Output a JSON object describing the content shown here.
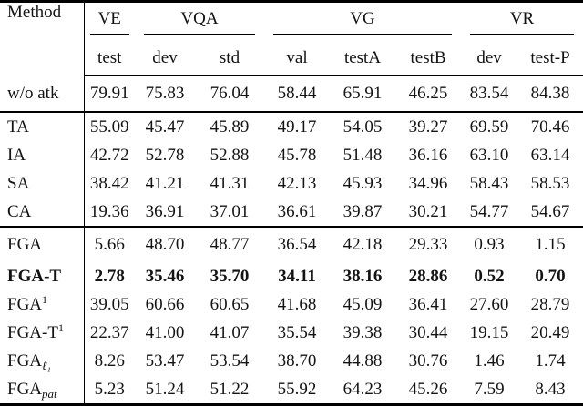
{
  "table": {
    "method_header": "Method",
    "groups": [
      {
        "label": "VE"
      },
      {
        "label": "VQA"
      },
      {
        "label": "VG"
      },
      {
        "label": "VR"
      }
    ],
    "subheaders": [
      "test",
      "dev",
      "std",
      "val",
      "testA",
      "testB",
      "dev",
      "test-P"
    ],
    "rows": [
      {
        "method": {
          "base": "w/o atk"
        },
        "values": [
          "79.91",
          "75.83",
          "76.04",
          "58.44",
          "65.91",
          "46.25",
          "83.54",
          "84.38"
        ]
      },
      {
        "method": {
          "base": "TA"
        },
        "values": [
          "55.09",
          "45.47",
          "45.89",
          "49.17",
          "54.05",
          "39.27",
          "69.59",
          "70.46"
        ]
      },
      {
        "method": {
          "base": "IA"
        },
        "values": [
          "42.72",
          "52.78",
          "52.88",
          "45.78",
          "51.48",
          "36.16",
          "63.10",
          "63.14"
        ]
      },
      {
        "method": {
          "base": "SA"
        },
        "values": [
          "38.42",
          "41.21",
          "41.31",
          "42.13",
          "45.93",
          "34.96",
          "58.43",
          "58.53"
        ]
      },
      {
        "method": {
          "base": "CA"
        },
        "values": [
          "19.36",
          "36.91",
          "37.01",
          "36.61",
          "39.87",
          "30.21",
          "54.77",
          "54.67"
        ]
      },
      {
        "method": {
          "base": "FGA"
        },
        "values": [
          "5.66",
          "48.70",
          "48.77",
          "36.54",
          "42.18",
          "29.33",
          "0.93",
          "1.15"
        ]
      },
      {
        "method": {
          "base": "FGA-T"
        },
        "values": [
          "2.78",
          "35.46",
          "35.70",
          "34.11",
          "38.16",
          "28.86",
          "0.52",
          "0.70"
        ]
      },
      {
        "method": {
          "base": "FGA",
          "sup": "1"
        },
        "values": [
          "39.05",
          "60.66",
          "60.65",
          "41.68",
          "45.09",
          "36.41",
          "27.60",
          "28.79"
        ]
      },
      {
        "method": {
          "base": "FGA-T",
          "sup": "1"
        },
        "values": [
          "22.37",
          "41.00",
          "41.07",
          "35.54",
          "39.38",
          "30.44",
          "19.15",
          "20.49"
        ]
      },
      {
        "method": {
          "base": "FGA",
          "sub": "ℓ₁"
        },
        "values": [
          "8.26",
          "53.47",
          "53.54",
          "38.70",
          "44.88",
          "30.76",
          "1.46",
          "1.74"
        ]
      },
      {
        "method": {
          "base": "FGA",
          "sub": "pat"
        },
        "values": [
          "5.23",
          "51.24",
          "51.22",
          "55.92",
          "64.23",
          "45.26",
          "7.59",
          "8.43"
        ]
      }
    ],
    "colors": {
      "rule": "#000000",
      "text": "#131313",
      "background": "#ffffff"
    }
  }
}
